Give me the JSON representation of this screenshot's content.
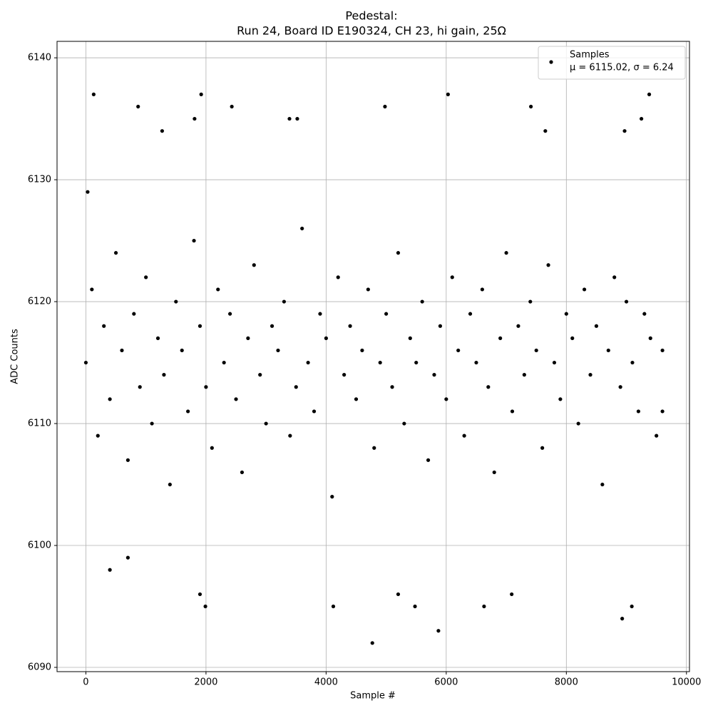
{
  "chart_data": {
    "type": "scatter",
    "title": "Pedestal:",
    "subtitle": "Run 24, Board ID E190324, CH 23, hi gain, 25Ω",
    "x_label": "Sample #",
    "y_label": "ADC Counts",
    "xlim": [
      -480,
      10050
    ],
    "ylim": [
      6089.65,
      6141.35
    ],
    "xticks": [
      0,
      2000,
      4000,
      6000,
      8000,
      10000
    ],
    "yticks": [
      6090,
      6100,
      6110,
      6120,
      6130,
      6140
    ],
    "grid": true,
    "legend": "upper right",
    "series": [
      {
        "name": "Samples",
        "annotation": "μ = 6115.02, σ = 6.24",
        "color": "#000000",
        "x": [
          0,
          100,
          200,
          300,
          400,
          500,
          600,
          700,
          800,
          900,
          1000,
          1100,
          1200,
          1300,
          1400,
          1500,
          1600,
          1700,
          1800,
          1900,
          2000,
          2100,
          2200,
          2300,
          2400,
          2500,
          2600,
          2700,
          2800,
          2900,
          3000,
          3100,
          3200,
          3300,
          3400,
          3500,
          3600,
          3700,
          3800,
          3900,
          4000,
          4100,
          4200,
          4300,
          4400,
          4500,
          4600,
          4700,
          4800,
          4900,
          5000,
          5100,
          5200,
          5300,
          5400,
          5500,
          5600,
          5700,
          5800,
          5900,
          6000,
          6100,
          6200,
          6300,
          6400,
          6500,
          6600,
          6700,
          6800,
          6900,
          7000,
          7100,
          7200,
          7300,
          7400,
          7500,
          7600,
          7700,
          7800,
          7900,
          8000,
          8100,
          8200,
          8300,
          8400,
          8500,
          8600,
          8700,
          8800,
          8900,
          9000,
          9100,
          9200,
          9300,
          9400,
          9500,
          9600,
          130,
          870,
          1920,
          2430,
          4980,
          6030,
          7410,
          9380,
          4770,
          5870,
          8930,
          9090,
          1990,
          4120,
          5480,
          6630,
          1900,
          7090,
          5200,
          1810,
          3390,
          3520,
          9250,
          1270,
          7650,
          8970,
          30,
          400,
          700,
          9600
        ],
        "values": [
          6115,
          6121,
          6109,
          6118,
          6112,
          6124,
          6116,
          6107,
          6119,
          6113,
          6122,
          6110,
          6117,
          6114,
          6105,
          6120,
          6116,
          6111,
          6125,
          6118,
          6113,
          6108,
          6121,
          6115,
          6119,
          6112,
          6106,
          6117,
          6123,
          6114,
          6110,
          6118,
          6116,
          6120,
          6109,
          6113,
          6126,
          6115,
          6111,
          6119,
          6117,
          6104,
          6122,
          6114,
          6118,
          6112,
          6116,
          6121,
          6108,
          6115,
          6119,
          6113,
          6124,
          6110,
          6117,
          6115,
          6120,
          6107,
          6114,
          6118,
          6112,
          6122,
          6116,
          6109,
          6119,
          6115,
          6121,
          6113,
          6106,
          6117,
          6124,
          6111,
          6118,
          6114,
          6120,
          6116,
          6108,
          6123,
          6115,
          6112,
          6119,
          6117,
          6110,
          6121,
          6114,
          6118,
          6105,
          6116,
          6122,
          6113,
          6120,
          6115,
          6111,
          6119,
          6117,
          6109,
          6116,
          6137,
          6136,
          6137,
          6136,
          6136,
          6137,
          6136,
          6137,
          6092,
          6093,
          6094,
          6095,
          6095,
          6095,
          6095,
          6095,
          6096,
          6096,
          6096,
          6135,
          6135,
          6135,
          6135,
          6134,
          6134,
          6134,
          6129,
          6098,
          6099,
          6111
        ]
      }
    ]
  }
}
